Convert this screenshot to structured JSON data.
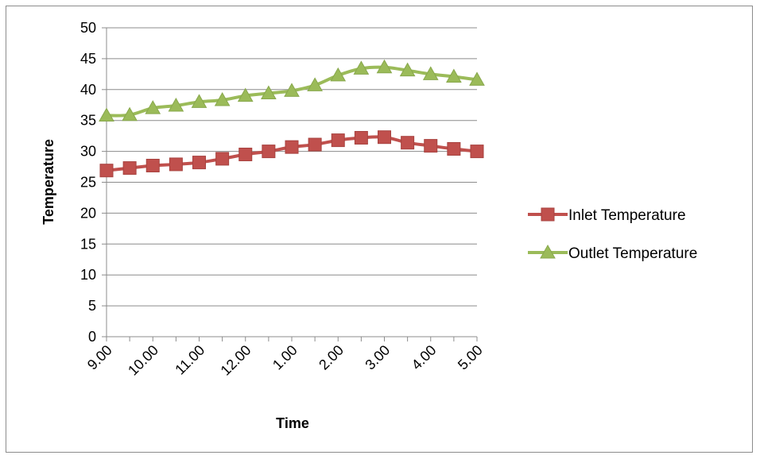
{
  "chart_data": {
    "type": "line",
    "title": "",
    "xlabel": "Time",
    "ylabel": "Temperature",
    "ylim": [
      0,
      50
    ],
    "ytick_step": 5,
    "x_tick_labels": [
      "9.00",
      "10.00",
      "11.00",
      "12.00",
      "1.00",
      "2.00",
      "3.00",
      "4.00",
      "5.00"
    ],
    "grid": true,
    "legend": "right",
    "series": [
      {
        "name": "Inlet Temperature",
        "color": "#c0504d",
        "marker": "square",
        "values": [
          26.9,
          27.3,
          27.7,
          27.9,
          28.2,
          28.8,
          29.5,
          30.0,
          30.7,
          31.1,
          31.8,
          32.2,
          32.3,
          31.4,
          30.9,
          30.4,
          30.0
        ]
      },
      {
        "name": "Outlet Temperature",
        "color": "#9bbb59",
        "marker": "triangle",
        "values": [
          35.8,
          35.9,
          37.0,
          37.4,
          38.0,
          38.3,
          39.0,
          39.4,
          39.8,
          40.7,
          42.3,
          43.4,
          43.6,
          43.1,
          42.5,
          42.1,
          41.6
        ]
      }
    ]
  }
}
